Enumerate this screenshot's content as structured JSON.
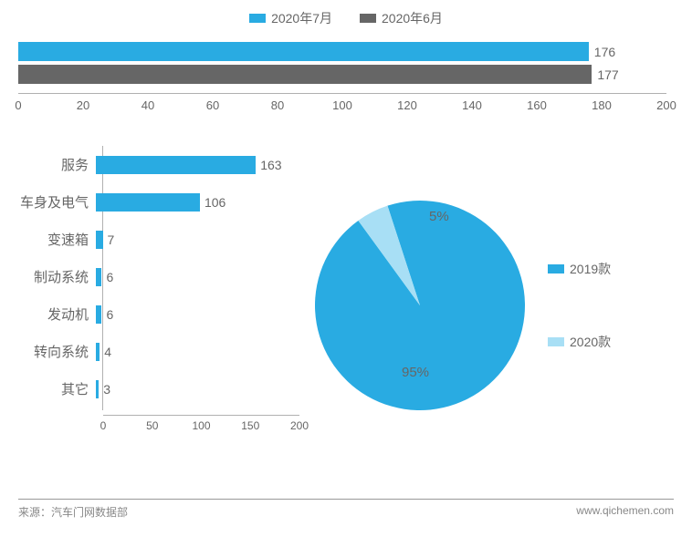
{
  "colors": {
    "series_main": "#29abe2",
    "series_alt": "#666666",
    "pie_main": "#29abe2",
    "pie_alt": "#a8dff5",
    "text": "#666666"
  },
  "top_legend": [
    {
      "label": "2020年7月",
      "color": "#29abe2"
    },
    {
      "label": "2020年6月",
      "color": "#666666"
    }
  ],
  "top_chart": {
    "type": "bar",
    "xmax": 200,
    "xtick_step": 20,
    "bars": [
      {
        "value": 176,
        "color": "#29abe2"
      },
      {
        "value": 177,
        "color": "#666666"
      }
    ]
  },
  "category_chart": {
    "type": "bar",
    "xmax": 200,
    "xtick_step": 50,
    "bar_color": "#29abe2",
    "items": [
      {
        "label": "服务",
        "value": 163
      },
      {
        "label": "车身及电气",
        "value": 106
      },
      {
        "label": "变速箱",
        "value": 7
      },
      {
        "label": "制动系统",
        "value": 6
      },
      {
        "label": "发动机",
        "value": 6
      },
      {
        "label": "转向系统",
        "value": 4
      },
      {
        "label": "其它",
        "value": 3
      }
    ]
  },
  "pie_chart": {
    "type": "pie",
    "slices": [
      {
        "label": "2019款",
        "value": 95,
        "color": "#29abe2",
        "display": "95%"
      },
      {
        "label": "2020款",
        "value": 5,
        "color": "#a8dff5",
        "display": "5%"
      }
    ]
  },
  "footer": {
    "source": "来源：汽车门网数据部",
    "site": "www.qichemen.com"
  }
}
